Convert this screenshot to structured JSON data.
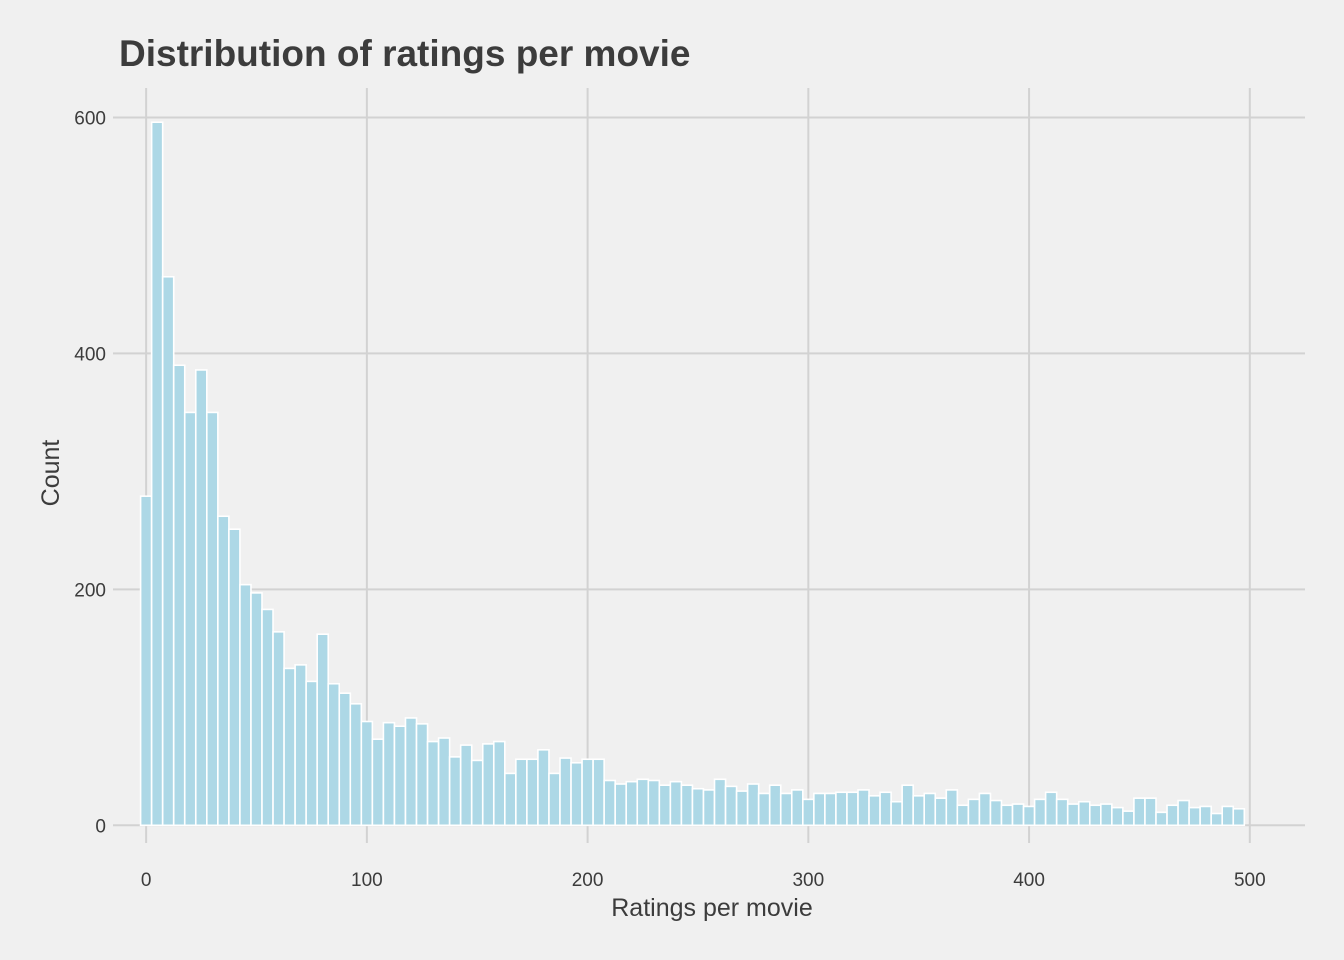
{
  "chart_data": {
    "type": "bar",
    "title": "Distribution of ratings per movie",
    "xlabel": "Ratings per movie",
    "ylabel": "Count",
    "xlim": [
      -15,
      525
    ],
    "ylim": [
      -15,
      625
    ],
    "x_ticks": [
      0,
      100,
      200,
      300,
      400,
      500
    ],
    "y_ticks": [
      0,
      200,
      400,
      600
    ],
    "bin_width": 5,
    "grid": true,
    "legend": "none",
    "colors": {
      "bar_fill": "#add8e6",
      "bar_stroke": "#ffffff",
      "grid": "#d2d2d2",
      "background": "#f0f0f0"
    },
    "bins_start": [
      0,
      5,
      10,
      15,
      20,
      25,
      30,
      35,
      40,
      45,
      50,
      55,
      60,
      65,
      70,
      75,
      80,
      85,
      90,
      95,
      100,
      105,
      110,
      115,
      120,
      125,
      130,
      135,
      140,
      145,
      150,
      155,
      160,
      165,
      170,
      175,
      180,
      185,
      190,
      195,
      200,
      205,
      210,
      215,
      220,
      225,
      230,
      235,
      240,
      245,
      250,
      255,
      260,
      265,
      270,
      275,
      280,
      285,
      290,
      295,
      300,
      305,
      310,
      315,
      320,
      325,
      330,
      335,
      340,
      345,
      350,
      355,
      360,
      365,
      370,
      375,
      380,
      385,
      390,
      395,
      400,
      405,
      410,
      415,
      420,
      425,
      430,
      435,
      440,
      445,
      450,
      455,
      460,
      465,
      470,
      475,
      480,
      485,
      490,
      495
    ],
    "values": [
      279,
      596,
      465,
      390,
      350,
      386,
      350,
      262,
      251,
      204,
      197,
      183,
      164,
      133,
      136,
      122,
      162,
      120,
      112,
      103,
      88,
      73,
      87,
      84,
      91,
      86,
      71,
      74,
      58,
      68,
      55,
      69,
      71,
      44,
      56,
      56,
      64,
      44,
      57,
      53,
      56,
      56,
      38,
      35,
      37,
      39,
      38,
      34,
      37,
      34,
      31,
      30,
      39,
      33,
      29,
      35,
      27,
      34,
      27,
      30,
      22,
      27,
      27,
      28,
      28,
      30,
      25,
      28,
      20,
      34,
      25,
      27,
      23,
      30,
      17,
      22,
      27,
      21,
      17,
      18,
      16,
      22,
      28,
      22,
      18,
      20,
      17,
      18,
      15,
      12,
      23,
      23,
      11,
      17,
      21,
      15,
      16,
      10,
      16,
      14
    ]
  }
}
